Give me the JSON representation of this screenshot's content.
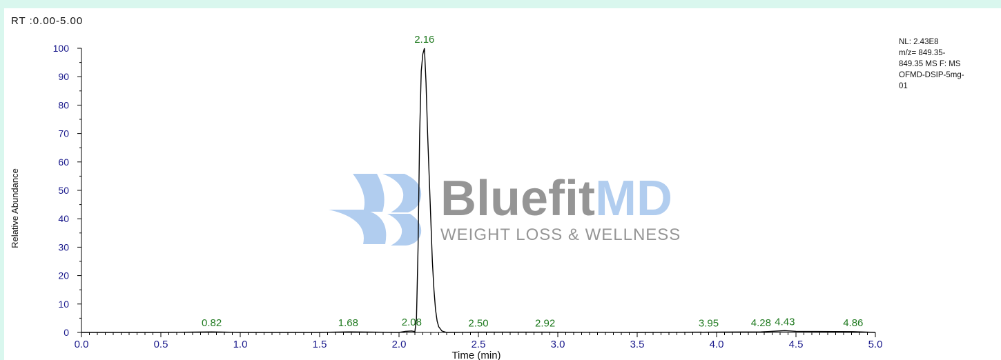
{
  "header": {
    "rt_range": "RT :0.00-5.00"
  },
  "info_box": {
    "lines": [
      "NL: 2.43E8",
      "m/z= 849.35-",
      "849.35 MS  F: MS",
      "OFMD-DSIP-5mg-",
      "01"
    ]
  },
  "watermark": {
    "brand_part1": "Bluefit",
    "brand_part2": "MD",
    "tagline": "WEIGHT LOSS & WELLNESS"
  },
  "colors": {
    "background": "#d9f7ee",
    "trace": "#000000",
    "peak_label": "#1f7a1f",
    "axis_text": "#1a1a8c",
    "watermark_gray": "#8a8a8a",
    "watermark_blue": "#a9c8ee"
  },
  "chart_data": {
    "type": "line",
    "xlabel": "Time (min)",
    "ylabel": "Relative Abundance",
    "xlim": [
      0.0,
      5.0
    ],
    "ylim": [
      0,
      100
    ],
    "x_ticks": [
      "0.0",
      "0.5",
      "1.0",
      "1.5",
      "2.0",
      "2.5",
      "3.0",
      "3.5",
      "4.0",
      "4.5",
      "5.0"
    ],
    "y_ticks": [
      "0",
      "10",
      "20",
      "30",
      "40",
      "50",
      "60",
      "70",
      "80",
      "90",
      "100"
    ],
    "grid": false,
    "series": [
      {
        "x": [
          0.0,
          0.5,
          0.82,
          1.0,
          1.5,
          1.68,
          2.0,
          2.04,
          2.08,
          2.1,
          2.11,
          2.12,
          2.13,
          2.14,
          2.15,
          2.16,
          2.17,
          2.18,
          2.19,
          2.2,
          2.21,
          2.22,
          2.23,
          2.24,
          2.25,
          2.27,
          2.3,
          2.5,
          2.92,
          3.5,
          3.95,
          4.28,
          4.43,
          4.5,
          4.86,
          5.0
        ],
        "y": [
          0,
          0,
          0.2,
          0,
          0,
          0.2,
          0,
          0.4,
          0.5,
          0.3,
          5,
          30,
          70,
          92,
          98,
          100,
          88,
          70,
          55,
          40,
          25,
          15,
          8,
          4,
          2,
          0.5,
          0,
          0.1,
          0.1,
          0,
          0.1,
          0.2,
          0.6,
          0.4,
          0.3,
          0
        ]
      }
    ],
    "peak_labels": [
      {
        "x": 0.82,
        "y": 0.2,
        "label": "0.82"
      },
      {
        "x": 1.68,
        "y": 0.2,
        "label": "1.68"
      },
      {
        "x": 2.08,
        "y": 0.5,
        "label": "2.08"
      },
      {
        "x": 2.16,
        "y": 100,
        "label": "2.16"
      },
      {
        "x": 2.5,
        "y": 0.1,
        "label": "2.50"
      },
      {
        "x": 2.92,
        "y": 0.1,
        "label": "2.92"
      },
      {
        "x": 3.95,
        "y": 0.1,
        "label": "3.95"
      },
      {
        "x": 4.28,
        "y": 0.2,
        "label": "4.28"
      },
      {
        "x": 4.43,
        "y": 0.6,
        "label": "4.43"
      },
      {
        "x": 4.86,
        "y": 0.3,
        "label": "4.86"
      }
    ]
  }
}
